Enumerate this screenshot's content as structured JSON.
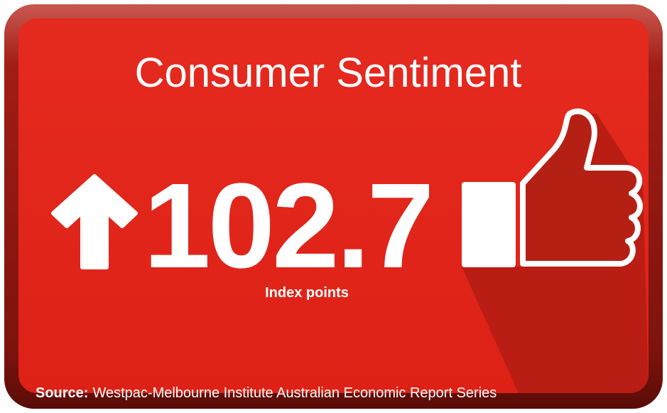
{
  "header": {
    "title": "Consumer Sentiment"
  },
  "metric": {
    "value": 102.7,
    "unit": "Index points"
  },
  "footer": {
    "source_label": "Source:",
    "source_text": "Westpac-Melbourne Institute Australian Economic Report Series"
  }
}
